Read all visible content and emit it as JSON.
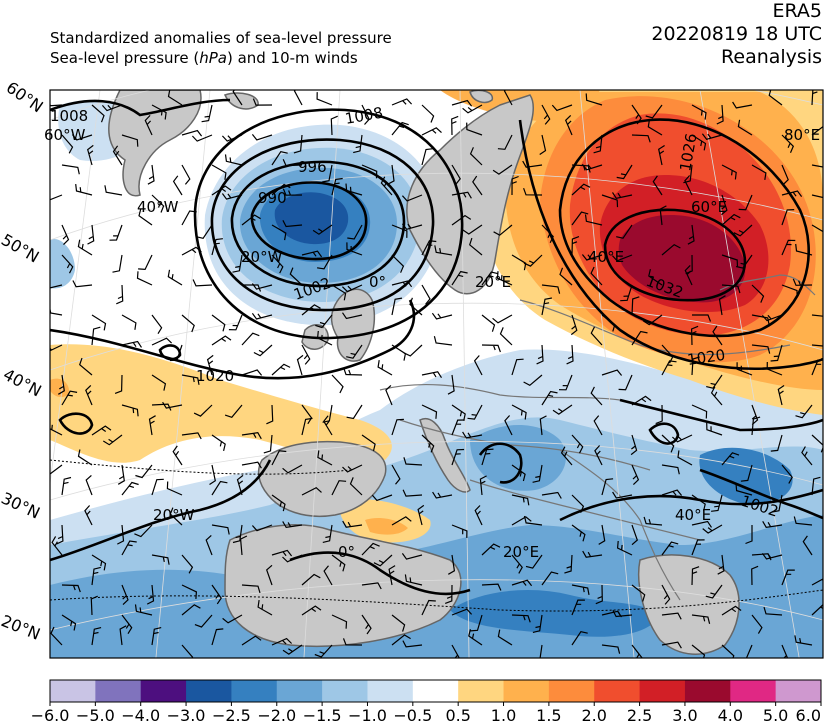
{
  "title": {
    "line1": "Standardized anomalies of sea-level pressure",
    "line2_pre": "Sea-level pressure (",
    "line2_unit": "hPa",
    "line2_post": ") and 10-m winds",
    "date": "20220819 18 UTC",
    "dataset": "ERA5",
    "kind": "Reanalysis"
  },
  "lat_labels": [
    "60°N",
    "50°N",
    "40°N",
    "30°N",
    "20°N"
  ],
  "map_labels": [
    "60°W",
    "40°W",
    "20°W",
    "0°",
    "20°E",
    "40°E",
    "60°E",
    "80°E",
    "40°E",
    "20°W",
    "0°",
    "20°E"
  ],
  "contour_labels": [
    "1008",
    "1008",
    "996",
    "990",
    "1002",
    "1020",
    "1026",
    "1032",
    "1020",
    "1002"
  ],
  "colorbar": {
    "ticks": [
      "−6.0",
      "−5.0",
      "−4.0",
      "−3.0",
      "−2.5",
      "−2.0",
      "−1.5",
      "−1.0",
      "−0.5",
      "0.5",
      "1.0",
      "1.5",
      "2.0",
      "2.5",
      "3.0",
      "4.0",
      "5.0",
      "6.0"
    ],
    "colors": [
      "#c9c4e5",
      "#8073bd",
      "#4d0f7f",
      "#1a57a0",
      "#3580c0",
      "#6aa6d5",
      "#9ec7e6",
      "#cce0f2",
      "#ffffff",
      "#ffd680",
      "#ffb14d",
      "#fd8c3c",
      "#f04e2e",
      "#d21f26",
      "#9a0a2e",
      "#e02884",
      "#cf98cf"
    ]
  },
  "colors": {
    "land": "#c8c8c8",
    "frame": "#000000",
    "neg1": "#cce0f2",
    "neg2": "#9ec7e6",
    "neg3": "#6aa6d5",
    "neg4": "#3580c0",
    "neg5": "#1a57a0",
    "pos1": "#ffd680",
    "pos2": "#ffb14d",
    "pos3": "#fd8c3c",
    "pos4": "#f04e2e",
    "pos5": "#d21f26",
    "pos6": "#9a0a2e"
  }
}
